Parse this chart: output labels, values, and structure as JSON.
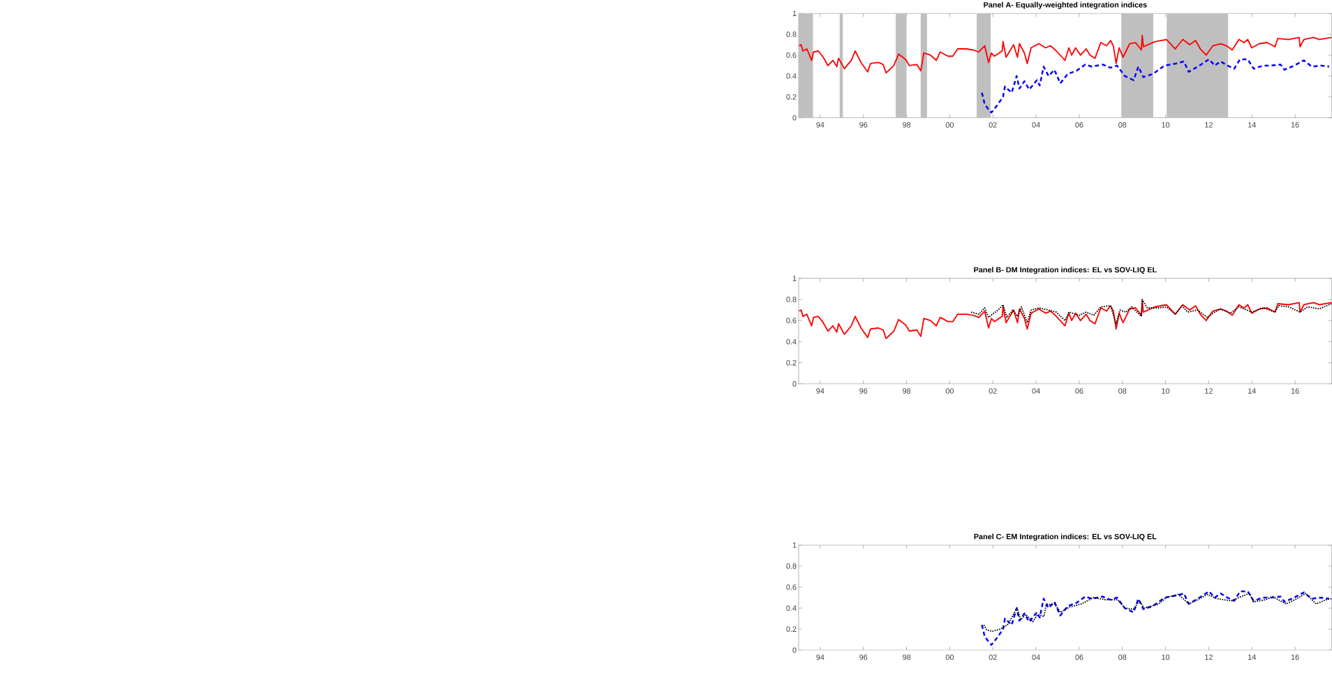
{
  "chart_data": [
    {
      "type": "line",
      "title": "Panel A- Equally-weighted integration indices",
      "xlim": [
        1993,
        2017.7
      ],
      "ylim": [
        0,
        1
      ],
      "xticks": [
        {
          "value": 1994,
          "label": "94"
        },
        {
          "value": 1996,
          "label": "96"
        },
        {
          "value": 1998,
          "label": "98"
        },
        {
          "value": 2000,
          "label": "00"
        },
        {
          "value": 2002,
          "label": "02"
        },
        {
          "value": 2004,
          "label": "04"
        },
        {
          "value": 2006,
          "label": "06"
        },
        {
          "value": 2008,
          "label": "08"
        },
        {
          "value": 2010,
          "label": "10"
        },
        {
          "value": 2012,
          "label": "12"
        },
        {
          "value": 2014,
          "label": "14"
        },
        {
          "value": 2016,
          "label": "16"
        }
      ],
      "yticks": [
        0,
        0.2,
        0.4,
        0.6,
        0.8,
        1
      ],
      "bands": [
        {
          "axis": "x",
          "from": 1993.0,
          "to": 1993.67,
          "color": "#bfbfbf"
        },
        {
          "axis": "x",
          "from": 1994.9,
          "to": 1995.05,
          "color": "#bfbfbf"
        },
        {
          "axis": "x",
          "from": 1997.5,
          "to": 1998.0,
          "color": "#bfbfbf"
        },
        {
          "axis": "x",
          "from": 1998.65,
          "to": 1998.95,
          "color": "#bfbfbf"
        },
        {
          "axis": "x",
          "from": 2001.25,
          "to": 2001.9,
          "color": "#bfbfbf"
        },
        {
          "axis": "x",
          "from": 2007.95,
          "to": 2009.43,
          "color": "#bfbfbf"
        },
        {
          "axis": "x",
          "from": 2010.05,
          "to": 2012.9,
          "color": "#bfbfbf"
        }
      ],
      "series": [
        {
          "color": "#ff0000",
          "line_style": "solid",
          "x": [
            1993.02,
            1993.11,
            1993.2,
            1993.38,
            1993.6,
            1993.69,
            1993.91,
            1994.14,
            1994.36,
            1994.59,
            1994.77,
            1994.85,
            1995.12,
            1995.44,
            1995.62,
            1995.89,
            1996.2,
            1996.33,
            1996.69,
            1996.92,
            1997.05,
            1997.41,
            1997.63,
            1997.95,
            1998.13,
            1998.48,
            1998.66,
            1998.8,
            1999.11,
            1999.38,
            1999.56,
            1999.92,
            2000.14,
            2000.37,
            2000.77,
            2001.08,
            2001.35,
            2001.62,
            2001.8,
            2001.93,
            2002.07,
            2002.43,
            2002.47,
            2002.61,
            2002.96,
            2003.14,
            2003.23,
            2003.46,
            2003.59,
            2003.77,
            2004.13,
            2004.44,
            2004.67,
            2004.94,
            2005.34,
            2005.52,
            2005.65,
            2005.83,
            2006.06,
            2006.32,
            2006.5,
            2006.73,
            2007.0,
            2007.27,
            2007.45,
            2007.58,
            2007.71,
            2007.85,
            2008.03,
            2008.34,
            2008.61,
            2008.88,
            2008.92,
            2008.97,
            2009.51,
            2010.04,
            2010.45,
            2010.8,
            2011.12,
            2011.39,
            2011.61,
            2011.88,
            2012.19,
            2012.55,
            2012.82,
            2013.09,
            2013.4,
            2013.63,
            2013.81,
            2013.99,
            2014.35,
            2014.71,
            2015.07,
            2015.2,
            2015.7,
            2016.19,
            2016.23,
            2016.41,
            2016.86,
            2017.12,
            2017.69
          ],
          "values": [
            0.69,
            0.7,
            0.64,
            0.66,
            0.55,
            0.63,
            0.64,
            0.58,
            0.5,
            0.55,
            0.49,
            0.57,
            0.47,
            0.55,
            0.64,
            0.53,
            0.44,
            0.52,
            0.53,
            0.51,
            0.43,
            0.5,
            0.61,
            0.56,
            0.5,
            0.51,
            0.45,
            0.62,
            0.6,
            0.55,
            0.63,
            0.59,
            0.59,
            0.66,
            0.66,
            0.65,
            0.63,
            0.69,
            0.53,
            0.62,
            0.59,
            0.64,
            0.73,
            0.58,
            0.7,
            0.58,
            0.71,
            0.62,
            0.52,
            0.67,
            0.71,
            0.67,
            0.69,
            0.64,
            0.55,
            0.67,
            0.6,
            0.67,
            0.6,
            0.66,
            0.6,
            0.57,
            0.72,
            0.69,
            0.74,
            0.69,
            0.52,
            0.67,
            0.58,
            0.71,
            0.72,
            0.65,
            0.79,
            0.68,
            0.73,
            0.75,
            0.66,
            0.75,
            0.7,
            0.74,
            0.66,
            0.6,
            0.69,
            0.71,
            0.69,
            0.65,
            0.75,
            0.72,
            0.75,
            0.67,
            0.71,
            0.72,
            0.68,
            0.76,
            0.75,
            0.77,
            0.68,
            0.75,
            0.77,
            0.75,
            0.77
          ]
        },
        {
          "color": "#0000ff",
          "line_style": "dashed",
          "x": [
            2001.49,
            2001.62,
            2001.8,
            2001.93,
            2002.2,
            2002.47,
            2002.56,
            2002.87,
            2003.1,
            2003.23,
            2003.46,
            2003.68,
            2004.04,
            2004.17,
            2004.35,
            2004.58,
            2004.85,
            2005.12,
            2005.47,
            2005.87,
            2006.28,
            2006.59,
            2007.08,
            2007.44,
            2007.75,
            2008.11,
            2008.52,
            2008.74,
            2008.97,
            2009.42,
            2009.95,
            2010.49,
            2010.85,
            2011.07,
            2011.57,
            2012.01,
            2012.28,
            2012.55,
            2012.87,
            2013.18,
            2013.45,
            2013.81,
            2014.08,
            2014.52,
            2014.88,
            2015.33,
            2015.51,
            2015.96,
            2016.41,
            2016.77,
            2017.21,
            2017.58
          ],
          "values": [
            0.24,
            0.13,
            0.08,
            0.05,
            0.12,
            0.2,
            0.3,
            0.24,
            0.4,
            0.28,
            0.35,
            0.27,
            0.36,
            0.31,
            0.49,
            0.4,
            0.46,
            0.33,
            0.42,
            0.45,
            0.51,
            0.49,
            0.51,
            0.48,
            0.5,
            0.4,
            0.36,
            0.49,
            0.39,
            0.42,
            0.5,
            0.52,
            0.54,
            0.44,
            0.5,
            0.56,
            0.5,
            0.54,
            0.5,
            0.47,
            0.56,
            0.56,
            0.47,
            0.5,
            0.5,
            0.51,
            0.46,
            0.5,
            0.55,
            0.49,
            0.5,
            0.49
          ]
        }
      ]
    },
    {
      "type": "line",
      "title": "Panel B- DM Integration indices: EL vs SOV-LIQ EL",
      "xlim": [
        1993,
        2017.7
      ],
      "ylim": [
        0,
        1
      ],
      "xticks": [
        {
          "value": 1994,
          "label": "94"
        },
        {
          "value": 1996,
          "label": "96"
        },
        {
          "value": 1998,
          "label": "98"
        },
        {
          "value": 2000,
          "label": "00"
        },
        {
          "value": 2002,
          "label": "02"
        },
        {
          "value": 2004,
          "label": "04"
        },
        {
          "value": 2006,
          "label": "06"
        },
        {
          "value": 2008,
          "label": "08"
        },
        {
          "value": 2010,
          "label": "10"
        },
        {
          "value": 2012,
          "label": "12"
        },
        {
          "value": 2014,
          "label": "14"
        },
        {
          "value": 2016,
          "label": "16"
        }
      ],
      "yticks": [
        0,
        0.2,
        0.4,
        0.6,
        0.8,
        1
      ],
      "series": [
        {
          "color": "#ff0000",
          "line_style": "solid",
          "x": [
            1993.02,
            1993.11,
            1993.2,
            1993.38,
            1993.6,
            1993.69,
            1993.91,
            1994.14,
            1994.36,
            1994.59,
            1994.77,
            1994.85,
            1995.12,
            1995.44,
            1995.62,
            1995.89,
            1996.2,
            1996.33,
            1996.69,
            1996.92,
            1997.05,
            1997.41,
            1997.63,
            1997.95,
            1998.13,
            1998.48,
            1998.66,
            1998.8,
            1999.11,
            1999.38,
            1999.56,
            1999.92,
            2000.14,
            2000.37,
            2000.77,
            2001.08,
            2001.35,
            2001.62,
            2001.8,
            2001.93,
            2002.07,
            2002.43,
            2002.47,
            2002.61,
            2002.96,
            2003.14,
            2003.23,
            2003.46,
            2003.59,
            2003.77,
            2004.13,
            2004.44,
            2004.67,
            2004.94,
            2005.34,
            2005.52,
            2005.65,
            2005.83,
            2006.06,
            2006.32,
            2006.5,
            2006.73,
            2007.0,
            2007.27,
            2007.45,
            2007.58,
            2007.71,
            2007.85,
            2008.03,
            2008.34,
            2008.61,
            2008.88,
            2008.92,
            2008.97,
            2009.51,
            2010.04,
            2010.45,
            2010.8,
            2011.12,
            2011.39,
            2011.61,
            2011.88,
            2012.19,
            2012.55,
            2012.82,
            2013.09,
            2013.4,
            2013.63,
            2013.81,
            2013.99,
            2014.35,
            2014.71,
            2015.07,
            2015.2,
            2015.7,
            2016.19,
            2016.23,
            2016.41,
            2016.86,
            2017.12,
            2017.69
          ],
          "values": [
            0.69,
            0.7,
            0.64,
            0.66,
            0.55,
            0.63,
            0.64,
            0.58,
            0.5,
            0.55,
            0.49,
            0.57,
            0.47,
            0.55,
            0.64,
            0.53,
            0.44,
            0.52,
            0.53,
            0.51,
            0.43,
            0.5,
            0.61,
            0.56,
            0.5,
            0.51,
            0.45,
            0.62,
            0.6,
            0.55,
            0.63,
            0.59,
            0.59,
            0.66,
            0.66,
            0.65,
            0.63,
            0.69,
            0.53,
            0.62,
            0.59,
            0.64,
            0.73,
            0.58,
            0.7,
            0.58,
            0.71,
            0.62,
            0.52,
            0.67,
            0.71,
            0.67,
            0.69,
            0.64,
            0.55,
            0.67,
            0.6,
            0.67,
            0.6,
            0.66,
            0.6,
            0.57,
            0.72,
            0.69,
            0.74,
            0.69,
            0.52,
            0.67,
            0.58,
            0.71,
            0.72,
            0.65,
            0.79,
            0.68,
            0.73,
            0.75,
            0.66,
            0.75,
            0.7,
            0.74,
            0.66,
            0.6,
            0.69,
            0.71,
            0.69,
            0.65,
            0.75,
            0.72,
            0.75,
            0.67,
            0.71,
            0.72,
            0.68,
            0.76,
            0.75,
            0.77,
            0.68,
            0.75,
            0.77,
            0.75,
            0.77
          ]
        },
        {
          "color": "#000000",
          "line_style": "dotted",
          "x": [
            2000.99,
            2001.35,
            2001.62,
            2001.8,
            2001.98,
            2002.25,
            2002.47,
            2002.65,
            2002.92,
            2003.14,
            2003.32,
            2003.59,
            2003.77,
            2004.13,
            2004.58,
            2004.94,
            2005.34,
            2005.52,
            2006.01,
            2006.32,
            2006.68,
            2007.0,
            2007.45,
            2007.71,
            2007.89,
            2008.16,
            2008.43,
            2008.88,
            2008.92,
            2009.15,
            2009.69,
            2010.04,
            2010.45,
            2010.76,
            2011.03,
            2011.48,
            2011.93,
            2012.19,
            2012.55,
            2013.0,
            2013.4,
            2013.99,
            2014.52,
            2015.07,
            2015.24,
            2015.7,
            2016.23,
            2016.59,
            2017.12,
            2017.69
          ],
          "values": [
            0.68,
            0.66,
            0.72,
            0.63,
            0.66,
            0.7,
            0.75,
            0.63,
            0.7,
            0.64,
            0.73,
            0.58,
            0.7,
            0.72,
            0.7,
            0.68,
            0.6,
            0.68,
            0.65,
            0.68,
            0.65,
            0.73,
            0.74,
            0.57,
            0.7,
            0.68,
            0.73,
            0.64,
            0.8,
            0.72,
            0.72,
            0.73,
            0.66,
            0.74,
            0.68,
            0.7,
            0.63,
            0.67,
            0.71,
            0.67,
            0.73,
            0.68,
            0.72,
            0.68,
            0.74,
            0.73,
            0.68,
            0.73,
            0.71,
            0.76
          ]
        }
      ]
    },
    {
      "type": "line",
      "title": "Panel C- EM Integration indices: EL vs SOV-LIQ EL",
      "xlim": [
        1993,
        2017.7
      ],
      "ylim": [
        0,
        1
      ],
      "xticks": [
        {
          "value": 1994,
          "label": "94"
        },
        {
          "value": 1996,
          "label": "96"
        },
        {
          "value": 1998,
          "label": "98"
        },
        {
          "value": 2000,
          "label": "00"
        },
        {
          "value": 2002,
          "label": "02"
        },
        {
          "value": 2004,
          "label": "04"
        },
        {
          "value": 2006,
          "label": "06"
        },
        {
          "value": 2008,
          "label": "08"
        },
        {
          "value": 2010,
          "label": "10"
        },
        {
          "value": 2012,
          "label": "12"
        },
        {
          "value": 2014,
          "label": "14"
        },
        {
          "value": 2016,
          "label": "16"
        }
      ],
      "yticks": [
        0,
        0.2,
        0.4,
        0.6,
        0.8,
        1
      ],
      "series": [
        {
          "color": "#0000ff",
          "line_style": "dashed",
          "x": [
            2001.49,
            2001.62,
            2001.8,
            2001.93,
            2002.2,
            2002.47,
            2002.56,
            2002.87,
            2003.1,
            2003.23,
            2003.46,
            2003.68,
            2004.04,
            2004.17,
            2004.35,
            2004.58,
            2004.85,
            2005.12,
            2005.47,
            2005.87,
            2006.28,
            2006.59,
            2007.08,
            2007.44,
            2007.75,
            2008.11,
            2008.52,
            2008.74,
            2008.97,
            2009.42,
            2009.95,
            2010.49,
            2010.85,
            2011.07,
            2011.57,
            2012.01,
            2012.28,
            2012.55,
            2012.87,
            2013.18,
            2013.45,
            2013.81,
            2014.08,
            2014.52,
            2014.88,
            2015.33,
            2015.51,
            2015.96,
            2016.41,
            2016.77,
            2017.21,
            2017.58
          ],
          "values": [
            0.24,
            0.13,
            0.08,
            0.05,
            0.12,
            0.2,
            0.3,
            0.24,
            0.4,
            0.28,
            0.35,
            0.27,
            0.36,
            0.31,
            0.49,
            0.4,
            0.46,
            0.33,
            0.42,
            0.45,
            0.51,
            0.49,
            0.51,
            0.48,
            0.5,
            0.4,
            0.36,
            0.49,
            0.39,
            0.42,
            0.5,
            0.52,
            0.54,
            0.44,
            0.5,
            0.56,
            0.5,
            0.54,
            0.5,
            0.47,
            0.56,
            0.56,
            0.47,
            0.5,
            0.5,
            0.51,
            0.46,
            0.5,
            0.55,
            0.49,
            0.5,
            0.49
          ]
        },
        {
          "color": "#000000",
          "line_style": "dotted",
          "x": [
            2001.58,
            2001.72,
            2002.0,
            2002.34,
            2002.67,
            2002.9,
            2003.12,
            2003.29,
            2003.52,
            2003.85,
            2004.08,
            2004.36,
            2004.47,
            2004.86,
            2005.14,
            2005.54,
            2006.1,
            2006.66,
            2007.22,
            2007.78,
            2008.12,
            2008.51,
            2008.79,
            2009.01,
            2009.69,
            2010.02,
            2010.59,
            2011.09,
            2011.48,
            2011.93,
            2012.38,
            2013.05,
            2013.5,
            2013.9,
            2014.07,
            2014.63,
            2014.96,
            2015.58,
            2016.09,
            2016.48,
            2016.98,
            2017.43,
            2017.68
          ],
          "values": [
            0.24,
            0.19,
            0.18,
            0.2,
            0.24,
            0.32,
            0.4,
            0.29,
            0.34,
            0.27,
            0.34,
            0.32,
            0.43,
            0.44,
            0.36,
            0.41,
            0.44,
            0.5,
            0.48,
            0.48,
            0.4,
            0.39,
            0.47,
            0.4,
            0.44,
            0.5,
            0.53,
            0.44,
            0.48,
            0.53,
            0.49,
            0.47,
            0.51,
            0.54,
            0.46,
            0.48,
            0.51,
            0.44,
            0.49,
            0.54,
            0.44,
            0.48,
            0.49
          ]
        }
      ]
    }
  ]
}
